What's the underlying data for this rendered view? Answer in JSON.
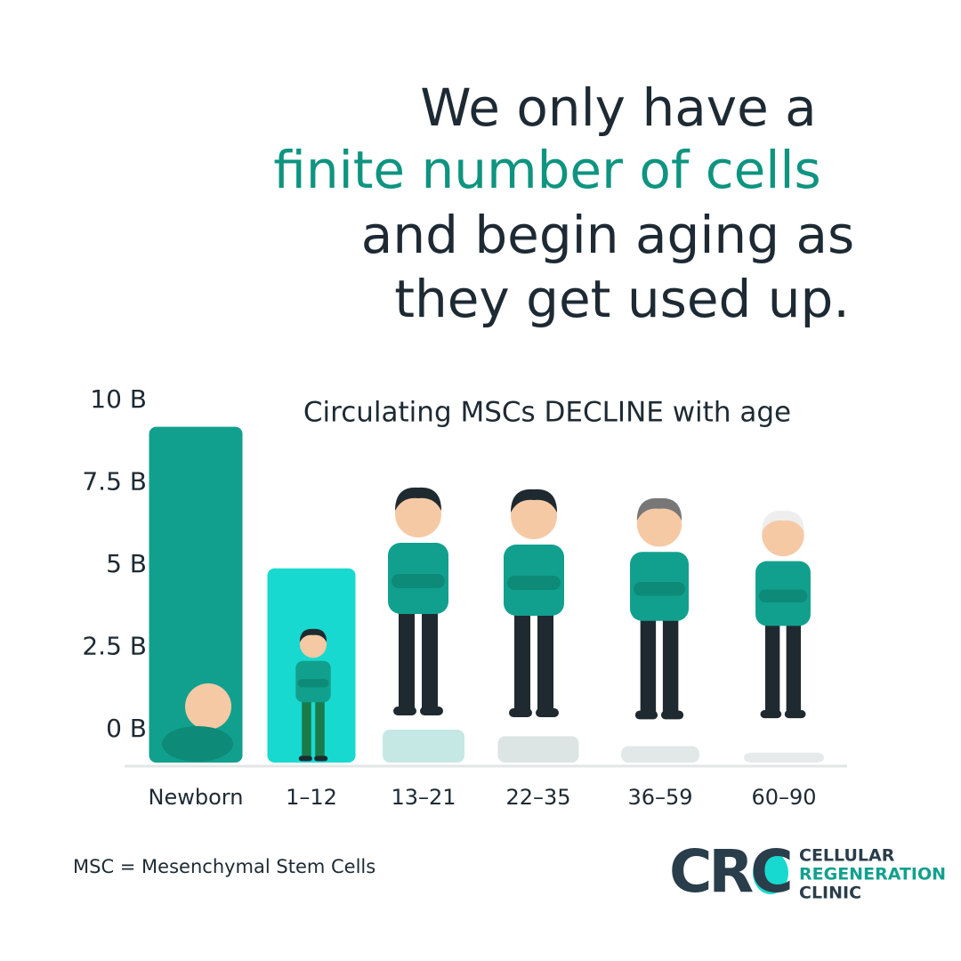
{
  "headline": [
    "We only have a",
    "finite number of cells",
    "and begin aging as",
    "they get used up."
  ],
  "chart_data": {
    "type": "bar",
    "title": "Circulating MSCs DECLINE with age",
    "categories": [
      "Newborn",
      "1–12",
      "13–21",
      "22–35",
      "36–59",
      "60–90"
    ],
    "values": [
      9.2,
      4.9,
      0,
      -0.2,
      -0.5,
      -0.7
    ],
    "colors": [
      "#12a08e",
      "#18d9cf",
      "#c6e8e4",
      "#dde4e4",
      "#e2e8e8",
      "#e6eaea"
    ],
    "ylim": [
      -1,
      10
    ],
    "yticks": [
      {
        "value": 0,
        "label": "0 B"
      },
      {
        "value": 2.5,
        "label": "2.5 B"
      },
      {
        "value": 5,
        "label": "5 B"
      },
      {
        "value": 7.5,
        "label": "7.5 B"
      },
      {
        "value": 10,
        "label": "10 B"
      }
    ],
    "grid": false
  },
  "footnote": "MSC = Mesenchymal Stem Cells",
  "logo": {
    "mark": "CRC",
    "lines": [
      "CELLULAR",
      "REGENERATION",
      "CLINIC"
    ]
  }
}
